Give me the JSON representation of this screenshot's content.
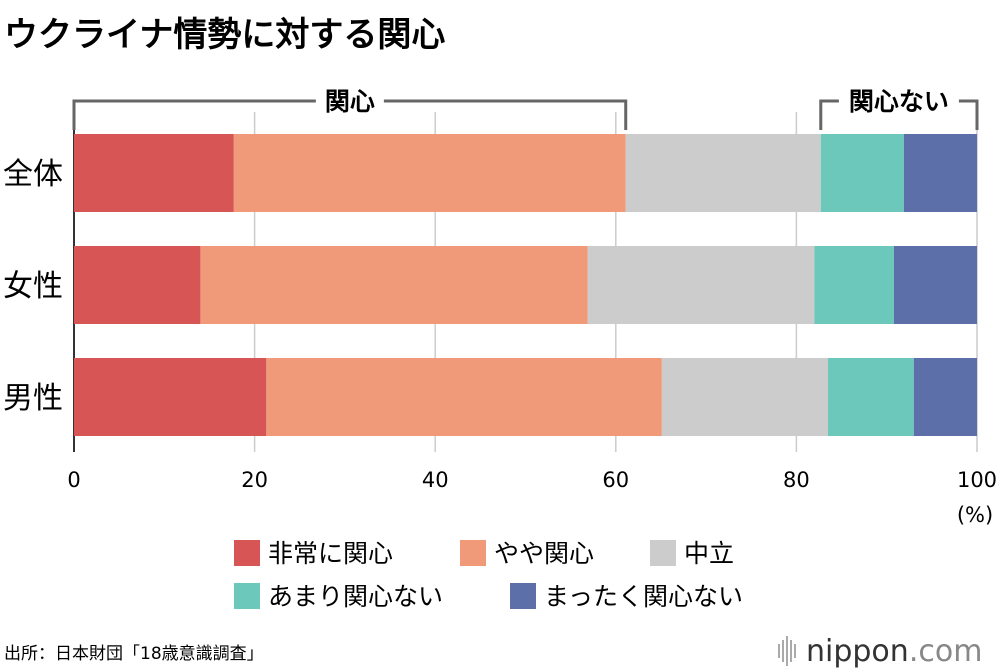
{
  "chart_data": {
    "type": "bar",
    "orientation": "horizontal",
    "stacked": true,
    "title": "ウクライナ情勢に対する関心",
    "categories": [
      "全体",
      "女性",
      "男性"
    ],
    "series": [
      {
        "name": "非常に関心",
        "color": "#d85555",
        "values": [
          17.7,
          14.0,
          21.3
        ]
      },
      {
        "name": "やや関心",
        "color": "#f09a7a",
        "values": [
          43.4,
          42.9,
          43.8
        ]
      },
      {
        "name": "中立",
        "color": "#cccccc",
        "values": [
          21.6,
          25.1,
          18.4
        ]
      },
      {
        "name": "あまり関心ない",
        "color": "#6cc8bb",
        "values": [
          9.2,
          8.8,
          9.5
        ]
      },
      {
        "name": "まったく関心ない",
        "color": "#5c6fa8",
        "values": [
          8.1,
          9.2,
          7.0
        ]
      }
    ],
    "xlim": [
      0,
      100
    ],
    "xticks": [
      0,
      20,
      40,
      60,
      80,
      100
    ],
    "xunit": "(%)",
    "grid": true,
    "legend_position": "bottom",
    "brackets": [
      {
        "label": "関心",
        "from": 0,
        "to": 61.1
      },
      {
        "label": "関心ない",
        "from": 82.7,
        "to": 100
      }
    ]
  },
  "source": "出所：日本財団「18歳意識調査」",
  "brand": {
    "name": "nippon",
    "suffix": ".com",
    "name_color": "#333333",
    "suffix_color": "#888888"
  }
}
